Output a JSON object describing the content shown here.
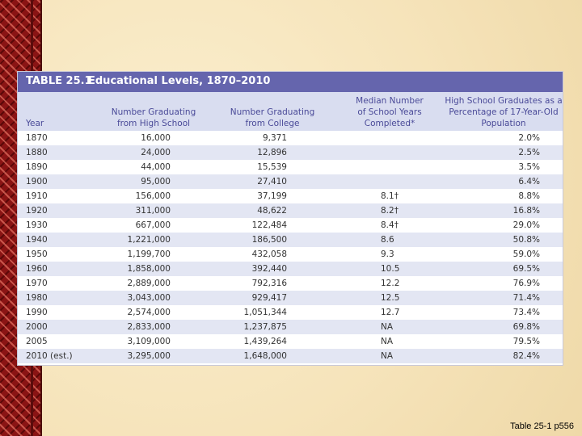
{
  "header": {
    "label": "TABLE 25.1",
    "title": "Educational Levels, 1870–2010"
  },
  "table": {
    "columns": [
      [
        "Year"
      ],
      [
        "Number Graduating",
        "from High School"
      ],
      [
        "Number Graduating",
        "from College"
      ],
      [
        "Median Number",
        "of School Years",
        "Completed*"
      ],
      [
        "High School Graduates as a",
        "Percentage of 17-Year-Old",
        "Population"
      ]
    ],
    "rows": [
      [
        "1870",
        "16,000",
        "9,371",
        null,
        "2.0%"
      ],
      [
        "1880",
        "24,000",
        "12,896",
        null,
        "2.5%"
      ],
      [
        "1890",
        "44,000",
        "15,539",
        null,
        "3.5%"
      ],
      [
        "1900",
        "95,000",
        "27,410",
        null,
        "6.4%"
      ],
      [
        "1910",
        "156,000",
        "37,199",
        "8.1†",
        "8.8%"
      ],
      [
        "1920",
        "311,000",
        "48,622",
        "8.2†",
        "16.8%"
      ],
      [
        "1930",
        "667,000",
        "122,484",
        "8.4†",
        "29.0%"
      ],
      [
        "1940",
        "1,221,000",
        "186,500",
        "8.6",
        "50.8%"
      ],
      [
        "1950",
        "1,199,700",
        "432,058",
        "9.3",
        "59.0%"
      ],
      [
        "1960",
        "1,858,000",
        "392,440",
        "10.5",
        "69.5%"
      ],
      [
        "1970",
        "2,889,000",
        "792,316",
        "12.2",
        "76.9%"
      ],
      [
        "1980",
        "3,043,000",
        "929,417",
        "12.5",
        "71.4%"
      ],
      [
        "1990",
        "2,574,000",
        "1,051,344",
        "12.7",
        "73.4%"
      ],
      [
        "2000",
        "2,833,000",
        "1,237,875",
        "NA",
        "69.8%"
      ],
      [
        "2005",
        "3,109,000",
        "1,439,264",
        "NA",
        "79.5%"
      ],
      [
        "2010 (est.)",
        "3,295,000",
        "1,648,000",
        "NA",
        "82.4%"
      ]
    ]
  },
  "caption": "Table 25-1 p556"
}
